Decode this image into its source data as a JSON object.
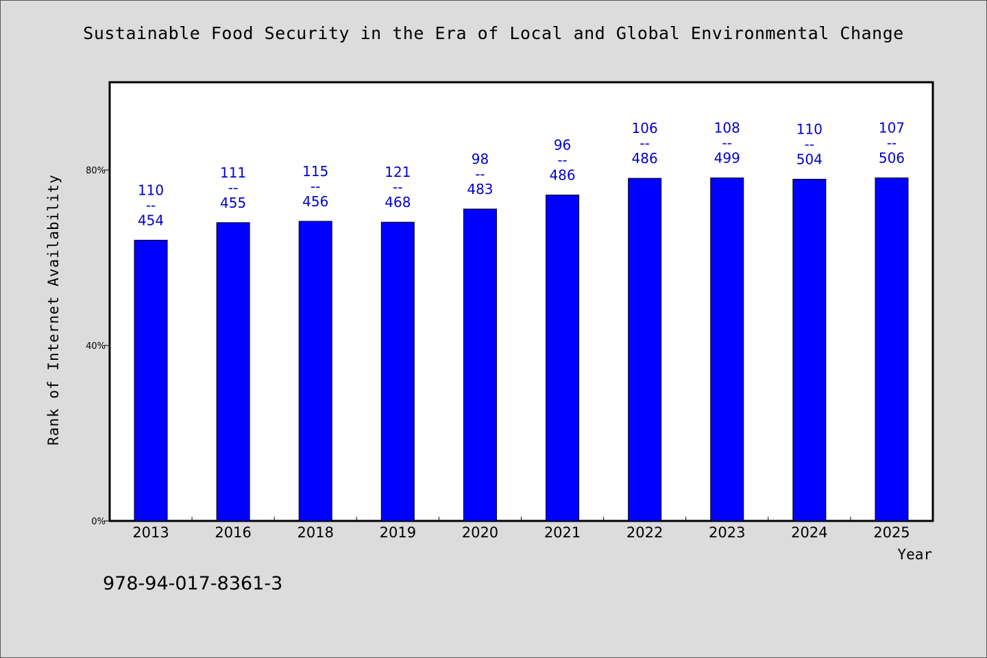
{
  "chart_data": {
    "type": "bar",
    "title": "Sustainable Food Security in the Era of Local and Global Environmental Change",
    "xlabel": "Year",
    "ylabel": "Rank of Internet Availability",
    "categories": [
      "2013",
      "2016",
      "2018",
      "2019",
      "2020",
      "2021",
      "2022",
      "2023",
      "2024",
      "2025"
    ],
    "values": [
      64,
      68,
      68.3,
      68.1,
      71.1,
      74.3,
      78.1,
      78.2,
      77.9,
      78.2
    ],
    "data_labels": [
      [
        "110",
        "--",
        "454"
      ],
      [
        "111",
        "--",
        "455"
      ],
      [
        "115",
        "--",
        "456"
      ],
      [
        "121",
        "--",
        "468"
      ],
      [
        "98",
        "--",
        "483"
      ],
      [
        "96",
        "--",
        "486"
      ],
      [
        "106",
        "--",
        "486"
      ],
      [
        "108",
        "--",
        "499"
      ],
      [
        "110",
        "--",
        "504"
      ],
      [
        "107",
        "--",
        "506"
      ]
    ],
    "yticks": [
      "0%",
      "40%",
      "80%"
    ],
    "ytick_values": [
      0,
      40,
      80
    ],
    "ylim": [
      0,
      100
    ],
    "grid": false,
    "bar_color": "#0000ff",
    "label_color": "#0000cc"
  },
  "footer": {
    "isbn": "978-94-017-8361-3"
  },
  "colors": {
    "background": "#dcdcdc",
    "plot_background": "#ffffff"
  }
}
